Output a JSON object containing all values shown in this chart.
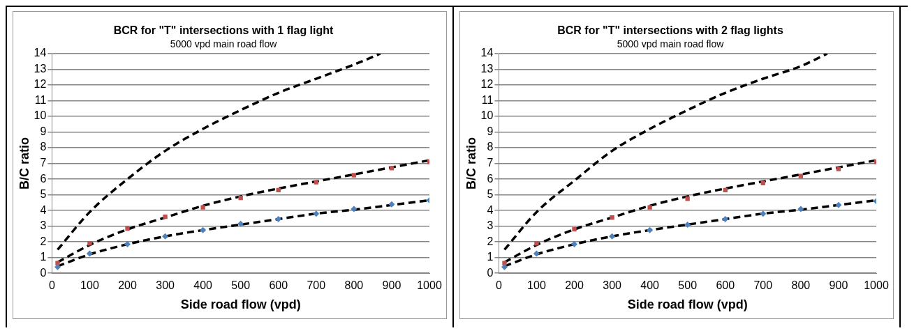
{
  "chart_data": [
    {
      "type": "scatter",
      "title": "BCR for \"T\" intersections with 1 flag light",
      "subtitle": "5000 vpd main road flow",
      "xlabel": "Side road flow (vpd)",
      "ylabel": "B/C ratio",
      "xlim": [
        0,
        1000
      ],
      "xticks": [
        0,
        100,
        200,
        300,
        400,
        500,
        600,
        700,
        800,
        900,
        1000
      ],
      "ylim": [
        0,
        14
      ],
      "yticks": [
        0,
        1,
        2,
        3,
        4,
        5,
        6,
        7,
        8,
        9,
        10,
        11,
        12,
        13,
        14
      ],
      "grid": "y",
      "legend": false,
      "series": [
        {
          "type": "scatter",
          "color": "#4f81bd",
          "marker": "diamond",
          "x": [
            15,
            100,
            200,
            300,
            400,
            500,
            600,
            700,
            800,
            900,
            1000
          ],
          "values": [
            0.4,
            1.25,
            1.85,
            2.35,
            2.75,
            3.15,
            3.45,
            3.8,
            4.1,
            4.4,
            4.65
          ]
        },
        {
          "type": "scatter",
          "color": "#c0504d",
          "marker": "square",
          "x": [
            15,
            100,
            200,
            300,
            400,
            500,
            600,
            700,
            800,
            900,
            1000
          ],
          "values": [
            0.65,
            1.9,
            2.85,
            3.6,
            4.2,
            4.8,
            5.3,
            5.8,
            6.25,
            6.7,
            7.1
          ]
        },
        {
          "type": "line",
          "color": "#000000",
          "marker": "none",
          "line_style": "dashed",
          "x": [
            15,
            100,
            200,
            300,
            400,
            500,
            600,
            700,
            800,
            900,
            1000
          ],
          "values": [
            0.45,
            1.2,
            1.85,
            2.35,
            2.75,
            3.1,
            3.45,
            3.8,
            4.05,
            4.35,
            4.65
          ]
        },
        {
          "type": "line",
          "color": "#000000",
          "marker": "none",
          "line_style": "dashed",
          "x": [
            15,
            100,
            200,
            300,
            400,
            500,
            600,
            700,
            800,
            900,
            1000
          ],
          "values": [
            0.7,
            1.8,
            2.8,
            3.55,
            4.3,
            4.9,
            5.4,
            5.85,
            6.3,
            6.75,
            7.2
          ]
        },
        {
          "type": "line",
          "color": "#000000",
          "marker": "none",
          "line_style": "dashed",
          "x": [
            15,
            100,
            200,
            300,
            400,
            500,
            600,
            700,
            800,
            870
          ],
          "values": [
            1.5,
            3.9,
            6.0,
            7.8,
            9.2,
            10.4,
            11.5,
            12.4,
            13.3,
            14
          ]
        }
      ]
    },
    {
      "type": "scatter",
      "title": "BCR for \"T\" intersections with 2 flag lights",
      "subtitle": "5000 vpd main road flow",
      "xlabel": "Side road flow (vpd)",
      "ylabel": "B/C ratio",
      "xlim": [
        0,
        1000
      ],
      "xticks": [
        0,
        100,
        200,
        300,
        400,
        500,
        600,
        700,
        800,
        900,
        1000
      ],
      "ylim": [
        0,
        14
      ],
      "yticks": [
        0,
        1,
        2,
        3,
        4,
        5,
        6,
        7,
        8,
        9,
        10,
        11,
        12,
        13,
        14
      ],
      "grid": "y",
      "legend": false,
      "series": [
        {
          "type": "scatter",
          "color": "#4f81bd",
          "marker": "diamond",
          "x": [
            15,
            100,
            200,
            300,
            400,
            500,
            600,
            700,
            800,
            900,
            1000
          ],
          "values": [
            0.4,
            1.25,
            1.85,
            2.35,
            2.75,
            3.1,
            3.45,
            3.8,
            4.1,
            4.35,
            4.6
          ]
        },
        {
          "type": "scatter",
          "color": "#c0504d",
          "marker": "square",
          "x": [
            15,
            100,
            200,
            300,
            400,
            500,
            600,
            700,
            800,
            900,
            1000
          ],
          "values": [
            0.65,
            1.9,
            2.8,
            3.55,
            4.2,
            4.75,
            5.3,
            5.75,
            6.2,
            6.65,
            7.1
          ]
        },
        {
          "type": "line",
          "color": "#000000",
          "marker": "none",
          "line_style": "dashed",
          "x": [
            15,
            100,
            200,
            300,
            400,
            500,
            600,
            700,
            800,
            900,
            1000
          ],
          "values": [
            0.45,
            1.2,
            1.85,
            2.35,
            2.75,
            3.1,
            3.45,
            3.8,
            4.05,
            4.35,
            4.65
          ]
        },
        {
          "type": "line",
          "color": "#000000",
          "marker": "none",
          "line_style": "dashed",
          "x": [
            15,
            100,
            200,
            300,
            400,
            500,
            600,
            700,
            800,
            900,
            1000
          ],
          "values": [
            0.7,
            1.8,
            2.8,
            3.55,
            4.3,
            4.9,
            5.4,
            5.85,
            6.3,
            6.75,
            7.2
          ]
        },
        {
          "type": "line",
          "color": "#000000",
          "marker": "none",
          "line_style": "dashed",
          "x": [
            15,
            100,
            200,
            300,
            400,
            500,
            600,
            700,
            800,
            870
          ],
          "values": [
            1.5,
            3.9,
            5.9,
            7.8,
            9.2,
            10.4,
            11.5,
            12.4,
            13.2,
            14
          ]
        }
      ]
    }
  ]
}
